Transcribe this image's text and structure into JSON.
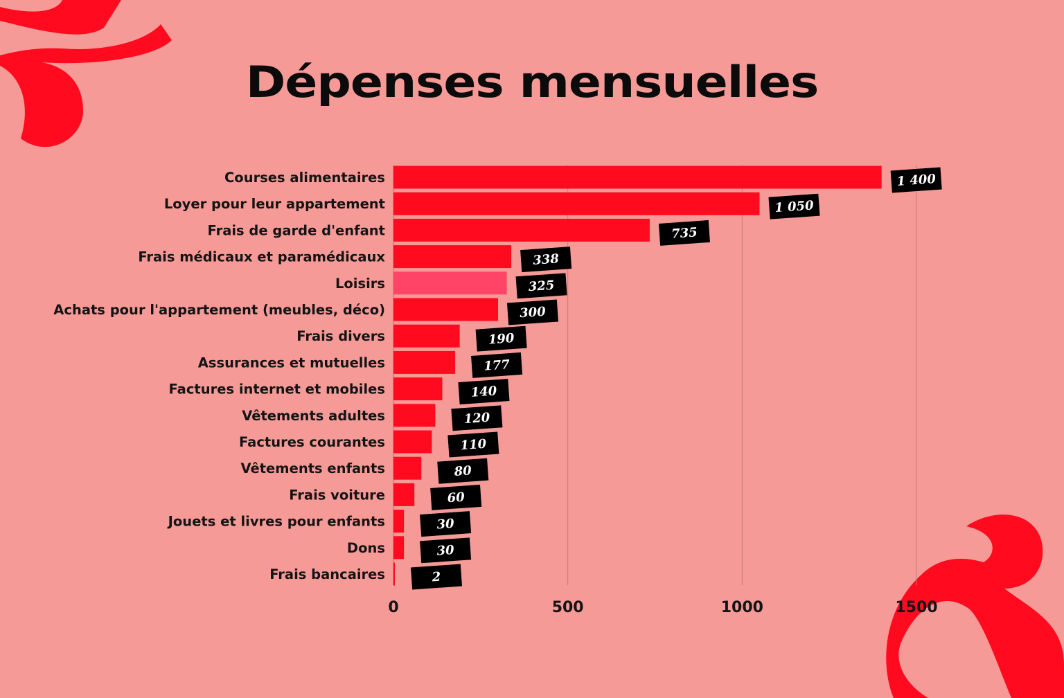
{
  "title": "Dépenses mensuelles",
  "colors": {
    "background": "#f59a97",
    "bar": "#ff0a1f",
    "highlight_bar": "#ff4468",
    "label_box": "#000000",
    "decoration": "#ff0a1f"
  },
  "chart_data": {
    "type": "bar",
    "orientation": "horizontal",
    "title": "Dépenses mensuelles",
    "xlabel": "",
    "ylabel": "",
    "xlim": [
      0,
      1500
    ],
    "xticks": [
      0,
      500,
      1000,
      1500
    ],
    "xtick_labels": [
      "0",
      "500",
      "1000",
      "1500"
    ],
    "grid": true,
    "categories": [
      "Courses alimentaires",
      "Loyer  pour leur appartement",
      "Frais de garde d'enfant",
      "Frais médicaux et paramédicaux",
      "Loisirs",
      "Achats pour l'appartement (meubles, déco)",
      "Frais divers ",
      "Assurances et mutuelles",
      "Factures internet et mobiles ",
      "Vêtements adultes",
      "Factures courantes",
      "Vêtements enfants ",
      "Frais voiture ",
      "Jouets et livres pour enfants",
      "Dons",
      "Frais bancaires"
    ],
    "values": [
      1400,
      1050,
      735,
      338,
      325,
      300,
      190,
      177,
      140,
      120,
      110,
      80,
      60,
      30,
      30,
      2
    ],
    "value_labels": [
      "1 400",
      "1 050",
      "735",
      "338",
      "325",
      "300",
      "190",
      "177",
      "140",
      "120",
      "110",
      "80",
      "60",
      "30",
      "30",
      "2"
    ],
    "highlighted_category": "Loisirs"
  }
}
